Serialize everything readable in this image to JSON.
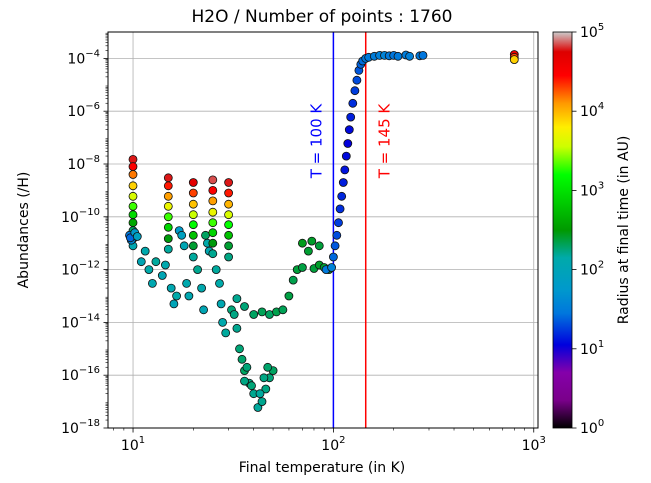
{
  "chart_data": {
    "type": "scatter",
    "title": "H2O / Number of points : 1760",
    "xlabel": "Final temperature (in K)",
    "ylabel": "Abundances (/H)",
    "xscale": "log",
    "yscale": "log",
    "xlim": [
      7.5,
      1050
    ],
    "ylim": [
      1e-18,
      0.001
    ],
    "grid": true,
    "x_ticks": [
      {
        "value": 10,
        "base": "10",
        "exp": "1"
      },
      {
        "value": 100,
        "base": "10",
        "exp": "2"
      },
      {
        "value": 1000,
        "base": "10",
        "exp": "3"
      }
    ],
    "y_ticks": [
      {
        "value": 0.0001,
        "base": "10",
        "exp": "−4"
      },
      {
        "value": 1e-06,
        "base": "10",
        "exp": "−6"
      },
      {
        "value": 1e-08,
        "base": "10",
        "exp": "−8"
      },
      {
        "value": 1e-10,
        "base": "10",
        "exp": "−10"
      },
      {
        "value": 1e-12,
        "base": "10",
        "exp": "−12"
      },
      {
        "value": 1e-14,
        "base": "10",
        "exp": "−14"
      },
      {
        "value": 1e-16,
        "base": "10",
        "exp": "−16"
      },
      {
        "value": 1e-18,
        "base": "10",
        "exp": "−18"
      }
    ],
    "vlines": [
      {
        "x": 100,
        "label": "T = 100 K",
        "color": "#0000ff"
      },
      {
        "x": 145,
        "label": "T = 145 K",
        "color": "#ff0000"
      }
    ],
    "colorbar": {
      "label": "Radius at final time (in AU)",
      "range": [
        1,
        100000
      ],
      "scale": "log",
      "colormap": "nipy_spectral",
      "ticks": [
        {
          "value": 1,
          "base": "10",
          "exp": "0"
        },
        {
          "value": 10,
          "base": "10",
          "exp": "1"
        },
        {
          "value": 100,
          "base": "10",
          "exp": "2"
        },
        {
          "value": 1000,
          "base": "10",
          "exp": "3"
        },
        {
          "value": 10000,
          "base": "10",
          "exp": "4"
        },
        {
          "value": 100000,
          "base": "10",
          "exp": "5"
        }
      ]
    },
    "points": [
      [
        10,
        1.5e-08,
        60000
      ],
      [
        10,
        8e-09,
        30000
      ],
      [
        10,
        4e-09,
        15000
      ],
      [
        10,
        1.5e-09,
        8000
      ],
      [
        10,
        6e-10,
        4000
      ],
      [
        10,
        2.5e-10,
        2000
      ],
      [
        10,
        1.2e-10,
        900
      ],
      [
        10,
        6e-11,
        400
      ],
      [
        10,
        3e-11,
        200
      ],
      [
        10,
        1.5e-11,
        150
      ],
      [
        10,
        8e-12,
        120
      ],
      [
        9.6,
        2e-11,
        30
      ],
      [
        9.8,
        1.3e-11,
        40
      ],
      [
        9.7,
        1.6e-11,
        25
      ],
      [
        10.2,
        2.5e-11,
        60
      ],
      [
        10.5,
        1.8e-11,
        80
      ],
      [
        11,
        2e-12,
        110
      ],
      [
        11.5,
        5e-12,
        130
      ],
      [
        12,
        1e-12,
        140
      ],
      [
        12.5,
        3e-13,
        120
      ],
      [
        13,
        2e-12,
        150
      ],
      [
        14,
        6e-13,
        110
      ],
      [
        14.5,
        1.5e-12,
        130
      ],
      [
        15,
        3e-09,
        60000
      ],
      [
        15,
        1.5e-09,
        25000
      ],
      [
        15,
        6e-10,
        12000
      ],
      [
        15,
        2.5e-10,
        5000
      ],
      [
        15,
        1e-10,
        2000
      ],
      [
        15,
        4e-11,
        800
      ],
      [
        15,
        1.5e-11,
        300
      ],
      [
        15,
        6e-12,
        150
      ],
      [
        15.5,
        2e-13,
        120
      ],
      [
        16,
        5e-14,
        100
      ],
      [
        16.5,
        1e-13,
        140
      ],
      [
        17,
        3e-11,
        60
      ],
      [
        17.5,
        2e-11,
        80
      ],
      [
        18,
        8e-12,
        110
      ],
      [
        18.5,
        3e-13,
        130
      ],
      [
        19,
        1e-13,
        120
      ],
      [
        20,
        2e-09,
        50000
      ],
      [
        20,
        8e-10,
        20000
      ],
      [
        20,
        3e-10,
        9000
      ],
      [
        20,
        1.2e-10,
        3500
      ],
      [
        20,
        5e-11,
        1500
      ],
      [
        20,
        2e-11,
        600
      ],
      [
        20,
        8e-12,
        250
      ],
      [
        20,
        3e-12,
        150
      ],
      [
        21,
        1e-12,
        160
      ],
      [
        22,
        2e-13,
        130
      ],
      [
        22.5,
        3e-14,
        110
      ],
      [
        23,
        2e-11,
        200
      ],
      [
        23.5,
        1e-11,
        140
      ],
      [
        24,
        5e-12,
        120
      ],
      [
        25,
        2.5e-09,
        70000
      ],
      [
        25,
        1e-09,
        30000
      ],
      [
        25,
        4e-10,
        12000
      ],
      [
        25,
        1.5e-10,
        5000
      ],
      [
        25,
        6e-11,
        2000
      ],
      [
        25,
        2.5e-11,
        800
      ],
      [
        25,
        1e-11,
        300
      ],
      [
        25,
        4e-12,
        160
      ],
      [
        26,
        1e-12,
        150
      ],
      [
        27,
        3e-13,
        140
      ],
      [
        27.5,
        5e-14,
        120
      ],
      [
        28,
        1e-14,
        130
      ],
      [
        29,
        4e-15,
        150
      ],
      [
        30,
        2e-09,
        60000
      ],
      [
        30,
        8e-10,
        25000
      ],
      [
        30,
        3e-10,
        10000
      ],
      [
        30,
        1.2e-10,
        4000
      ],
      [
        30,
        5e-11,
        1600
      ],
      [
        30,
        2e-11,
        600
      ],
      [
        30,
        8e-12,
        250
      ],
      [
        30,
        3e-12,
        170
      ],
      [
        31,
        3e-14,
        180
      ],
      [
        32,
        2e-14,
        170
      ],
      [
        33,
        6e-15,
        160
      ],
      [
        34,
        1e-15,
        180
      ],
      [
        35,
        4e-16,
        190
      ],
      [
        36,
        1.5e-16,
        200
      ],
      [
        37,
        2e-16,
        180
      ],
      [
        38,
        5e-17,
        170
      ],
      [
        40,
        2e-17,
        160
      ],
      [
        42,
        6e-18,
        150
      ],
      [
        44,
        1e-17,
        160
      ],
      [
        46,
        3e-17,
        170
      ],
      [
        48,
        8e-17,
        180
      ],
      [
        50,
        1.5e-16,
        200
      ],
      [
        47,
        2e-16,
        190
      ],
      [
        45,
        8e-17,
        170
      ],
      [
        43,
        2e-17,
        150
      ],
      [
        39,
        4e-17,
        180
      ],
      [
        36,
        6e-17,
        170
      ],
      [
        33,
        8e-14,
        160
      ],
      [
        36,
        4e-14,
        180
      ],
      [
        40,
        2e-14,
        200
      ],
      [
        44,
        2.5e-14,
        210
      ],
      [
        48,
        2e-14,
        200
      ],
      [
        52,
        2.5e-14,
        220
      ],
      [
        56,
        3e-14,
        210
      ],
      [
        60,
        1e-13,
        230
      ],
      [
        63,
        4e-13,
        220
      ],
      [
        66,
        1e-12,
        240
      ],
      [
        70,
        1.2e-12,
        230
      ],
      [
        75,
        5e-12,
        250
      ],
      [
        80,
        1.1e-12,
        240
      ],
      [
        85,
        1.5e-12,
        260
      ],
      [
        90,
        1.2e-12,
        250
      ],
      [
        95,
        1e-12,
        270
      ],
      [
        70,
        1e-11,
        280
      ],
      [
        78,
        1.2e-11,
        260
      ],
      [
        85,
        8e-12,
        240
      ],
      [
        92,
        1e-12,
        30
      ],
      [
        98,
        1.2e-12,
        35
      ],
      [
        100,
        3e-12,
        25
      ],
      [
        102,
        8e-12,
        22
      ],
      [
        104,
        2e-11,
        20
      ],
      [
        106,
        6e-11,
        18
      ],
      [
        108,
        2e-10,
        16
      ],
      [
        110,
        6e-10,
        15
      ],
      [
        112,
        2e-09,
        14
      ],
      [
        114,
        6e-09,
        13
      ],
      [
        116,
        2e-08,
        12
      ],
      [
        118,
        6e-08,
        11
      ],
      [
        120,
        2e-07,
        12
      ],
      [
        122,
        6e-07,
        14
      ],
      [
        125,
        2e-06,
        16
      ],
      [
        128,
        6e-06,
        18
      ],
      [
        131,
        1.5e-05,
        20
      ],
      [
        134,
        3.5e-05,
        22
      ],
      [
        137,
        6e-05,
        24
      ],
      [
        140,
        8e-05,
        26
      ],
      [
        145,
        0.0001,
        28
      ],
      [
        150,
        0.00011,
        30
      ],
      [
        160,
        0.00012,
        32
      ],
      [
        170,
        0.00013,
        34
      ],
      [
        180,
        0.00013,
        36
      ],
      [
        190,
        0.000125,
        30
      ],
      [
        200,
        0.00013,
        28
      ],
      [
        210,
        0.00012,
        30
      ],
      [
        230,
        0.000135,
        32
      ],
      [
        240,
        0.00012,
        34
      ],
      [
        270,
        0.000125,
        30
      ],
      [
        280,
        0.00013,
        28
      ],
      [
        800,
        0.00014,
        40000
      ],
      [
        800,
        0.00011,
        20000
      ],
      [
        800,
        9e-05,
        8000
      ]
    ]
  }
}
